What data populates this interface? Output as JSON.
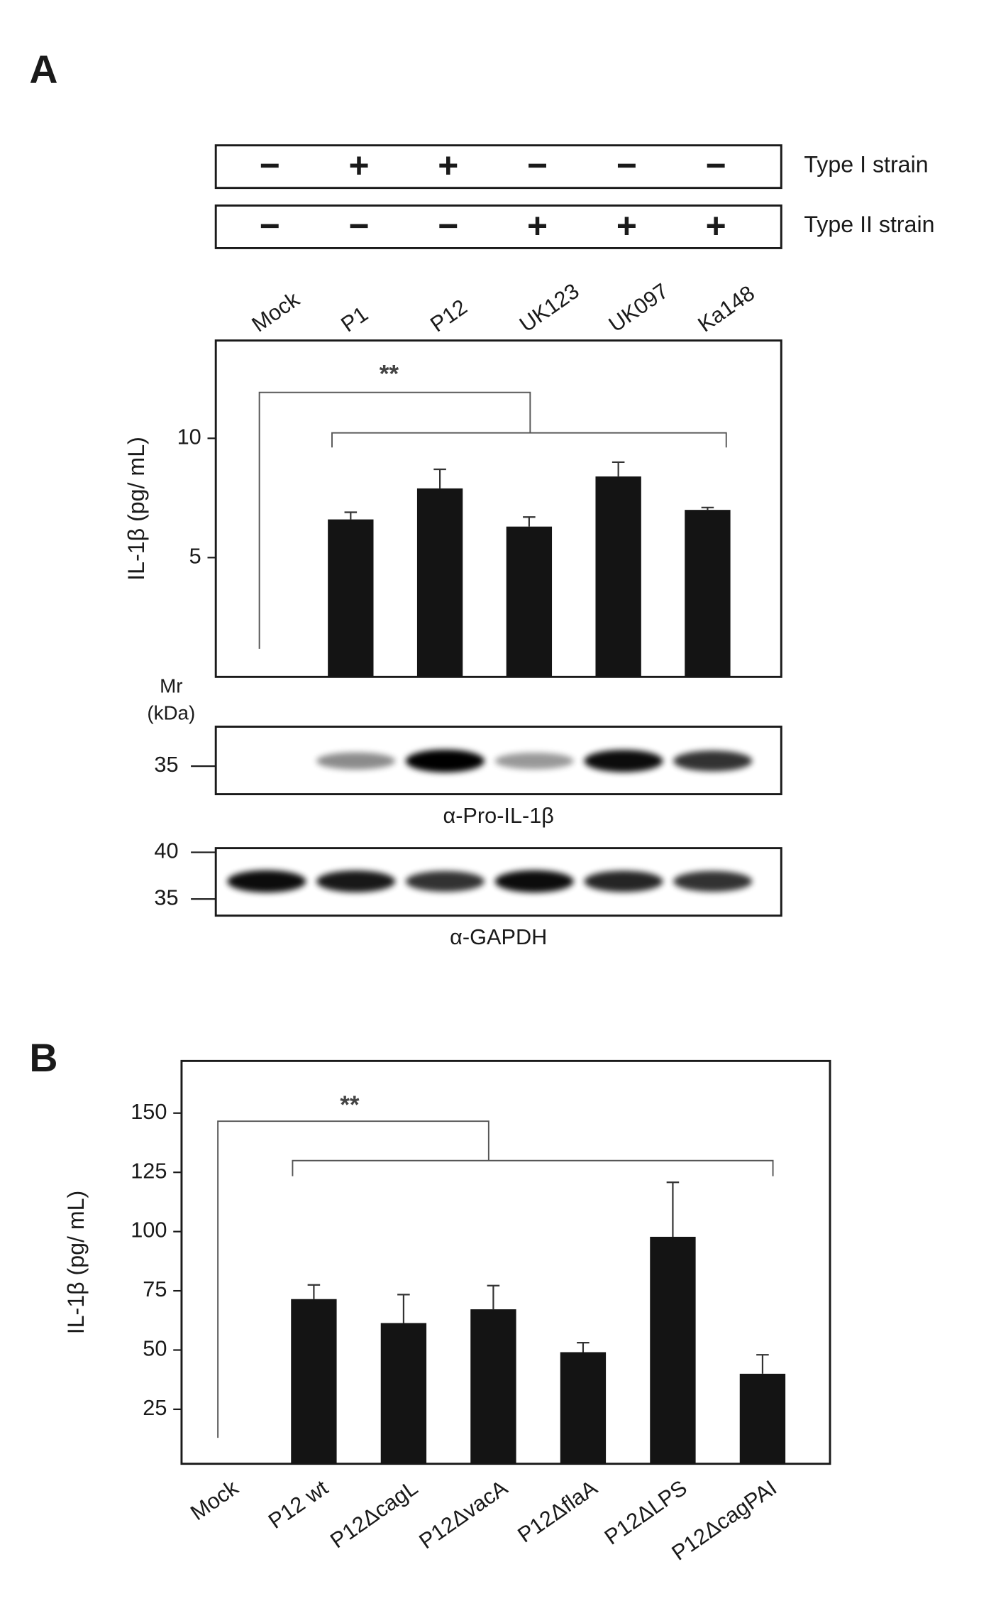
{
  "chart_data": [
    {
      "type": "bar",
      "panel": "A",
      "strains": [
        {
          "label": "Type I strain",
          "signs": [
            "−",
            "+",
            "+",
            "−",
            "−",
            "−"
          ]
        },
        {
          "label": "Type II strain",
          "signs": [
            "−",
            "−",
            "−",
            "+",
            "+",
            "+"
          ]
        }
      ],
      "categories": [
        "Mock",
        "P1",
        "P12",
        "UK123",
        "UK097",
        "Ka148"
      ],
      "values": [
        null,
        6.6,
        7.9,
        6.3,
        8.4,
        7.0
      ],
      "errors": [
        null,
        0.3,
        0.8,
        0.4,
        0.6,
        0.1
      ],
      "color": "#141414",
      "ylabel": "IL-1β (pg/ mL)",
      "ylim": [
        0,
        14.1
      ],
      "yticks": [
        5,
        10
      ],
      "annotation": "**",
      "blot_header": [
        "Mr",
        "(kDa)"
      ],
      "blots": [
        {
          "label": "α-Pro-IL-1β",
          "markers": [
            35
          ]
        },
        {
          "label": "α-GAPDH",
          "markers": [
            40,
            35
          ]
        }
      ]
    },
    {
      "type": "bar",
      "panel": "B",
      "categories": [
        "Mock",
        "P12 wt",
        "P12ΔcagL",
        "P12ΔvacA",
        "P12ΔflaA",
        "P12ΔLPS",
        "P12ΔcagPAI"
      ],
      "values": [
        null,
        71.5,
        61.4,
        67.2,
        49.1,
        97.8,
        40
      ],
      "errors": [
        null,
        6,
        12,
        10,
        4,
        23,
        8
      ],
      "color": "#141414",
      "ylabel": "IL-1β (pg/ mL)",
      "ylim": [
        2,
        172
      ],
      "yticks": [
        25,
        50,
        75,
        100,
        125,
        150
      ],
      "annotation": "**"
    }
  ]
}
